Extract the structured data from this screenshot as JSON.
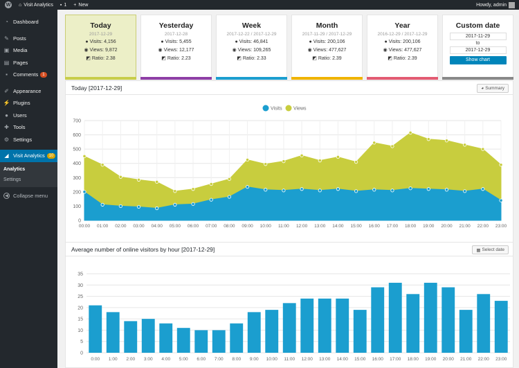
{
  "adminbar": {
    "site_name": "Visit Analytics",
    "comments": "1",
    "new_label": "New",
    "howdy": "Howdy, admin"
  },
  "sidebar": {
    "items": [
      {
        "label": "Dashboard",
        "icon": "dashboard-icon"
      },
      {
        "label": "Posts",
        "icon": "pin-icon"
      },
      {
        "label": "Media",
        "icon": "media-icon"
      },
      {
        "label": "Pages",
        "icon": "pages-icon"
      },
      {
        "label": "Comments",
        "icon": "comment-icon",
        "badge": "1"
      },
      {
        "label": "Appearance",
        "icon": "brush-icon"
      },
      {
        "label": "Plugins",
        "icon": "plugin-icon"
      },
      {
        "label": "Users",
        "icon": "users-icon"
      },
      {
        "label": "Tools",
        "icon": "wrench-icon"
      },
      {
        "label": "Settings",
        "icon": "settings-icon"
      }
    ],
    "current": {
      "label": "Visit Analytics",
      "badge": "10"
    },
    "submenu": [
      "Analytics",
      "Settings"
    ],
    "collapse": "Collapse menu"
  },
  "stats": [
    {
      "title": "Today",
      "date": "2017-12-29",
      "visits": "Visits: 4,156",
      "views": "Views: 9,872",
      "ratio": "Ratio: 2.38",
      "color": "#c8cd4a"
    },
    {
      "title": "Yesterday",
      "date": "2017-12-28",
      "visits": "Visits: 5,455",
      "views": "Views: 12,177",
      "ratio": "Ratio: 2.23",
      "color": "#8e3ea6"
    },
    {
      "title": "Week",
      "date": "2017-12-22 / 2017-12-29",
      "visits": "Visits: 46,841",
      "views": "Views: 109,265",
      "ratio": "Ratio: 2.33",
      "color": "#1b9ecf"
    },
    {
      "title": "Month",
      "date": "2017-11-29 / 2017-12-29",
      "visits": "Visits: 200,106",
      "views": "Views: 477,627",
      "ratio": "Ratio: 2.39",
      "color": "#f0b400"
    },
    {
      "title": "Year",
      "date": "2016-12-29 / 2017-12-29",
      "visits": "Visits: 200,106",
      "views": "Views: 477,627",
      "ratio": "Ratio: 2.39",
      "color": "#e35b72"
    }
  ],
  "custom": {
    "title": "Custom date",
    "from": "2017-11-29",
    "to_label": "to",
    "to": "2017-12-29",
    "button": "Show chart",
    "color": "#888888"
  },
  "panel1": {
    "title": "Today [2017-12-29]",
    "button": "Summary"
  },
  "panel2": {
    "title": "Average number of online visitors by hour [2017-12-29]",
    "button": "Select date"
  },
  "chart_data": [
    {
      "type": "area",
      "x": [
        "00:00",
        "01:00",
        "02:00",
        "03:00",
        "04:00",
        "05:00",
        "06:00",
        "07:00",
        "08:00",
        "09:00",
        "10:00",
        "11:00",
        "12:00",
        "13:00",
        "14:00",
        "15:00",
        "16:00",
        "17:00",
        "18:00",
        "19:00",
        "20:00",
        "21:00",
        "22:00",
        "23:00"
      ],
      "series": [
        {
          "name": "Visits",
          "color": "#1b9ecf",
          "values": [
            200,
            110,
            100,
            95,
            85,
            110,
            115,
            145,
            165,
            235,
            215,
            210,
            220,
            210,
            220,
            205,
            215,
            210,
            225,
            220,
            215,
            205,
            220,
            140
          ]
        },
        {
          "name": "Views",
          "color": "#c8cd3e",
          "values": [
            450,
            390,
            305,
            285,
            270,
            205,
            220,
            255,
            290,
            425,
            395,
            415,
            455,
            420,
            445,
            410,
            545,
            520,
            615,
            570,
            560,
            530,
            500,
            390
          ]
        }
      ],
      "ylim": [
        0,
        700
      ],
      "yticks": [
        0,
        100,
        200,
        300,
        400,
        500,
        600,
        700
      ],
      "legend": "top-center",
      "grid": true
    },
    {
      "type": "bar",
      "categories": [
        "0:00",
        "1:00",
        "2:00",
        "3:00",
        "4:00",
        "5:00",
        "6:00",
        "7:00",
        "8:00",
        "9:00",
        "10:00",
        "11:00",
        "12:00",
        "13:00",
        "14:00",
        "15:00",
        "16:00",
        "17:00",
        "18:00",
        "19:00",
        "20:00",
        "21:00",
        "22:00",
        "23:00"
      ],
      "values": [
        21,
        18,
        14,
        15,
        13,
        11,
        10,
        10,
        13,
        18,
        19,
        22,
        24,
        24,
        24,
        19,
        29,
        31,
        26,
        31,
        29,
        19,
        26,
        23
      ],
      "color": "#1b9ecf",
      "ylim": [
        0,
        35
      ],
      "yticks": [
        0,
        5,
        10,
        15,
        20,
        25,
        30,
        35
      ],
      "grid": true
    }
  ]
}
